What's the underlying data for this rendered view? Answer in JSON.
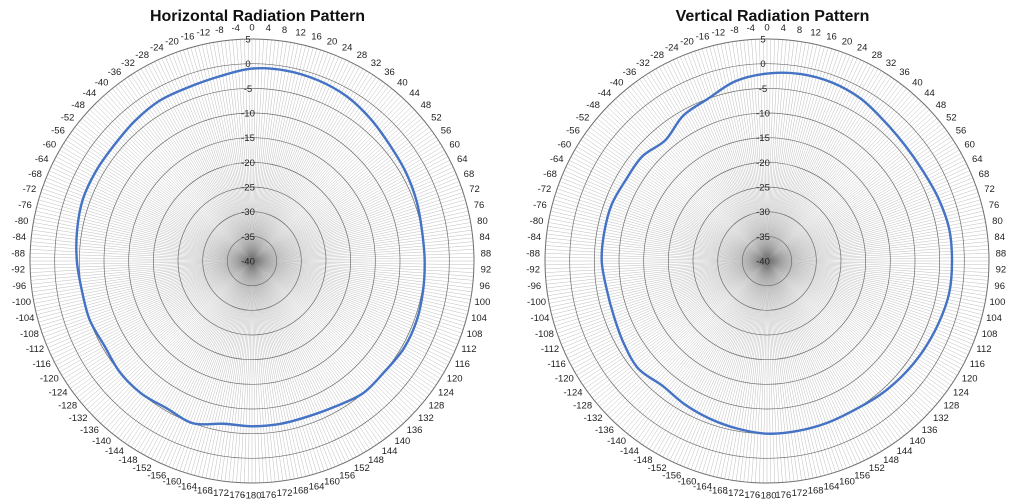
{
  "chart_data": [
    {
      "type": "polar-line",
      "title": "Horizontal Radiation Pattern",
      "radial_ticks": [
        5,
        0,
        -5,
        -10,
        -15,
        -20,
        -25,
        -30,
        -35,
        -40
      ],
      "angular_ticks": [
        0,
        4,
        8,
        12,
        16,
        20,
        24,
        28,
        32,
        36,
        40,
        44,
        48,
        52,
        56,
        60,
        64,
        68,
        72,
        76,
        80,
        84,
        88,
        92,
        96,
        100,
        104,
        108,
        112,
        116,
        120,
        124,
        128,
        132,
        136,
        140,
        144,
        148,
        152,
        156,
        160,
        164,
        168,
        172,
        176,
        -180,
        -176,
        -172,
        -168,
        -164,
        -160,
        -156,
        -152,
        -148,
        -144,
        -140,
        -136,
        -132,
        -128,
        -124,
        -120,
        -116,
        -112,
        -108,
        -104,
        -100,
        -96,
        -92,
        -88,
        -84,
        -80,
        -76,
        -72,
        -68,
        -64,
        -60,
        -56,
        -52,
        -48,
        -44,
        -40,
        -36,
        -32,
        -28,
        -24,
        -20,
        -16,
        -12,
        -8,
        -4
      ],
      "rlim": [
        -40,
        5
      ],
      "color": "#4472C4",
      "series": [
        {
          "angles": [
            0,
            10,
            20,
            30,
            40,
            50,
            60,
            70,
            80,
            90,
            100,
            110,
            120,
            130,
            140,
            150,
            160,
            170,
            180,
            -170,
            -160,
            -150,
            -140,
            -130,
            -120,
            -110,
            -100,
            -90,
            -80,
            -70,
            -60,
            -50,
            -40,
            -30,
            -20,
            -10
          ],
          "values": [
            -1,
            -0.8,
            -1,
            -1.5,
            -2.5,
            -3.5,
            -4,
            -4.5,
            -5,
            -5,
            -4.8,
            -4.5,
            -4.5,
            -5,
            -5,
            -6,
            -6.5,
            -6.5,
            -6.5,
            -6.5,
            -5,
            -5.5,
            -5,
            -5,
            -5.5,
            -5,
            -5,
            -4.5,
            -4,
            -3.5,
            -3.5,
            -3.5,
            -3,
            -2.5,
            -2.5,
            -2
          ]
        }
      ]
    },
    {
      "type": "polar-line",
      "title": "Vertical Radiation Pattern",
      "radial_ticks": [
        5,
        0,
        -5,
        -10,
        -15,
        -20,
        -25,
        -30,
        -35,
        -40
      ],
      "angular_ticks": [
        0,
        4,
        8,
        12,
        16,
        20,
        24,
        28,
        32,
        36,
        40,
        44,
        48,
        52,
        56,
        60,
        64,
        68,
        72,
        76,
        80,
        84,
        88,
        92,
        96,
        100,
        104,
        108,
        112,
        116,
        120,
        124,
        128,
        132,
        136,
        140,
        144,
        148,
        152,
        156,
        160,
        164,
        168,
        172,
        176,
        -180,
        -176,
        -172,
        -168,
        -164,
        -160,
        -156,
        -152,
        -148,
        -144,
        -140,
        -136,
        -132,
        -128,
        -124,
        -120,
        -116,
        -112,
        -108,
        -104,
        -100,
        -96,
        -92,
        -88,
        -84,
        -80,
        -76,
        -72,
        -68,
        -64,
        -60,
        -56,
        -52,
        -48,
        -44,
        -40,
        -36,
        -32,
        -28,
        -24,
        -20,
        -16,
        -12,
        -8,
        -4
      ],
      "rlim": [
        -40,
        5
      ],
      "color": "#4472C4",
      "series": [
        {
          "angles": [
            0,
            10,
            20,
            30,
            40,
            50,
            60,
            70,
            80,
            90,
            100,
            110,
            120,
            130,
            140,
            150,
            160,
            170,
            180,
            -170,
            -160,
            -150,
            -140,
            -130,
            -120,
            -110,
            -100,
            -90,
            -80,
            -70,
            -60,
            -50,
            -40,
            -30,
            -20,
            -10
          ],
          "values": [
            -2,
            -1.5,
            -1.5,
            -2,
            -3,
            -3.5,
            -3.5,
            -3,
            -2.5,
            -2.5,
            -2.5,
            -3,
            -3.5,
            -4,
            -4.5,
            -5,
            -5,
            -5,
            -5,
            -5.5,
            -6,
            -6.5,
            -7,
            -6,
            -6.5,
            -7,
            -7,
            -6.5,
            -6.5,
            -6.5,
            -7,
            -7,
            -8,
            -6,
            -5,
            -3
          ]
        }
      ]
    }
  ]
}
